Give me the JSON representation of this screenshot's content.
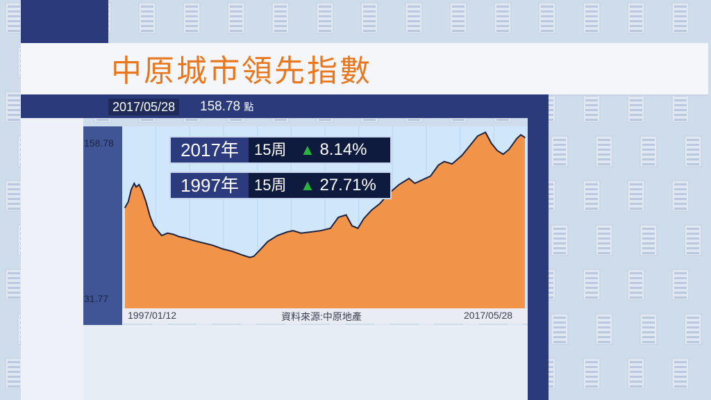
{
  "title": "中原城市領先指數",
  "header": {
    "date": "2017/05/28",
    "value": "158.78",
    "unit": "點"
  },
  "stats": [
    {
      "year": "2017年",
      "weeks": "15周",
      "change": "8.14%",
      "direction": "up"
    },
    {
      "year": "1997年",
      "weeks": "15周",
      "change": "27.71%",
      "direction": "up"
    }
  ],
  "source": "資料來源:中原地產",
  "colors": {
    "fill": "#f2934a",
    "line": "#1c2340",
    "accent": "#e8771d",
    "up": "#28b33a"
  },
  "chart_data": {
    "type": "area",
    "x_start": "1997/01/12",
    "x_end": "2017/05/28",
    "ylim": [
      31.77,
      158.78
    ],
    "ytick_labels": [
      "158.78",
      "31.77"
    ],
    "series": [
      {
        "x": [
          1997.03,
          1997.2,
          1997.35,
          1997.5,
          1997.6,
          1997.75,
          1997.9,
          1998.1,
          1998.3,
          1998.5,
          1998.7,
          1998.9,
          1999.2,
          1999.5,
          1999.8,
          2000.1,
          2000.5,
          2001.0,
          2001.5,
          2002.0,
          2002.5,
          2003.0,
          2003.4,
          2003.6,
          2003.9,
          2004.3,
          2004.8,
          2005.3,
          2005.6,
          2006.0,
          2006.5,
          2007.0,
          2007.5,
          2007.9,
          2008.3,
          2008.6,
          2008.9,
          2009.2,
          2009.6,
          2010.0,
          2010.5,
          2011.0,
          2011.5,
          2011.8,
          2012.2,
          2012.6,
          2013.0,
          2013.3,
          2013.7,
          2014.2,
          2014.6,
          2015.0,
          2015.4,
          2015.7,
          2016.0,
          2016.3,
          2016.6,
          2017.0,
          2017.2,
          2017.41
        ],
        "values": [
          101,
          106,
          116,
          121,
          118,
          120,
          115,
          106,
          94,
          86,
          82,
          78,
          80,
          79,
          77,
          76,
          74,
          72,
          70,
          67,
          65,
          62,
          60,
          61,
          66,
          73,
          78,
          81,
          82,
          80,
          81,
          82,
          84,
          93,
          95,
          86,
          84,
          92,
          99,
          104,
          113,
          120,
          125,
          121,
          124,
          127,
          136,
          139,
          137,
          144,
          152,
          160,
          163,
          154,
          148,
          145,
          149,
          158,
          161,
          158.78
        ]
      }
    ]
  }
}
